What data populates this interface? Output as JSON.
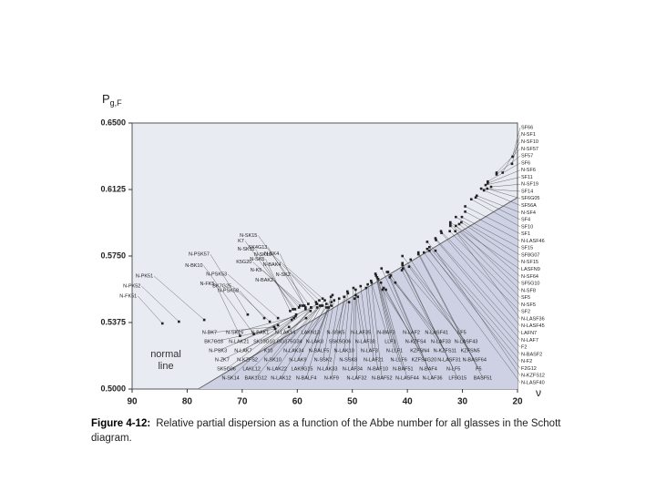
{
  "chart_data": {
    "type": "scatter",
    "y_label": {
      "main": "P",
      "sub": "g,F"
    },
    "x_label": "ν",
    "xlim": [
      90,
      20
    ],
    "xticks": [
      90,
      80,
      70,
      60,
      50,
      40,
      30,
      20
    ],
    "ylim": [
      0.5,
      0.65
    ],
    "yticks": [
      {
        "value": 0.5,
        "label": "0.5000"
      },
      {
        "value": 0.5375,
        "label": "0.5375"
      },
      {
        "value": 0.575,
        "label": "0.5750"
      },
      {
        "value": 0.6125,
        "label": "0.6125"
      },
      {
        "value": 0.65,
        "label": "0.6500"
      }
    ],
    "normal_line": {
      "x": [
        78,
        20
      ],
      "y": [
        0.5,
        0.608
      ],
      "label": "normal line"
    },
    "point_color": "#222222",
    "points": [
      {
        "label": "N-FK51",
        "x": 84.5,
        "y": 0.537
      },
      {
        "label": "N-PK52",
        "x": 81.5,
        "y": 0.538
      },
      {
        "label": "N-PK51",
        "x": 76.9,
        "y": 0.539
      },
      {
        "label": "N-FK5",
        "x": 70.4,
        "y": 0.53
      },
      {
        "label": "N-PSK3",
        "x": 63.5,
        "y": 0.536
      },
      {
        "label": "N-BK10",
        "x": 67.9,
        "y": 0.531
      },
      {
        "label": "N-BK7",
        "x": 64.2,
        "y": 0.535
      },
      {
        "label": "BK7G18",
        "x": 64,
        "y": 0.534
      },
      {
        "label": "BK7G25",
        "x": 65,
        "y": 0.538
      },
      {
        "label": "N-ZK7",
        "x": 61.5,
        "y": 0.535
      },
      {
        "label": "N-SK14",
        "x": 60.6,
        "y": 0.54
      },
      {
        "label": "N-SK16",
        "x": 60.3,
        "y": 0.541
      },
      {
        "label": "N-LAK21",
        "x": 60.2,
        "y": 0.542
      },
      {
        "label": "N-LAK7",
        "x": 58.5,
        "y": 0.545
      },
      {
        "label": "SK5G06",
        "x": 61,
        "y": 0.539
      },
      {
        "label": "N-PSK58",
        "x": 66,
        "y": 0.54
      },
      {
        "label": "N-PSK57",
        "x": 69,
        "y": 0.542
      },
      {
        "label": "N-PSK53",
        "x": 63.5,
        "y": 0.54
      },
      {
        "label": "N-SK5",
        "x": 61.3,
        "y": 0.544
      },
      {
        "label": "N-SK11",
        "x": 60.8,
        "y": 0.545
      },
      {
        "label": "K7",
        "x": 60.4,
        "y": 0.545
      },
      {
        "label": "N-BAK2",
        "x": 59.7,
        "y": 0.546
      },
      {
        "label": "N-K5",
        "x": 59.5,
        "y": 0.547
      },
      {
        "label": "N-SK4",
        "x": 58.7,
        "y": 0.547
      },
      {
        "label": "N-SK15",
        "x": 58,
        "y": 0.548
      },
      {
        "label": "SK4G13",
        "x": 58.5,
        "y": 0.546
      },
      {
        "label": "BAK1G12",
        "x": 57.5,
        "y": 0.546
      },
      {
        "label": "SK10G10",
        "x": 56.5,
        "y": 0.548
      },
      {
        "label": "N-SK2",
        "x": 56.6,
        "y": 0.549
      },
      {
        "label": "K5G20",
        "x": 59,
        "y": 0.547
      },
      {
        "label": "N-BAK4",
        "x": 56,
        "y": 0.55
      },
      {
        "label": "GG375G34",
        "x": 55,
        "y": 0.55
      },
      {
        "label": "N-SK18",
        "x": 55.4,
        "y": 0.551
      },
      {
        "label": "N-BALF5",
        "x": 53.6,
        "y": 0.553
      },
      {
        "label": "N-BALF4",
        "x": 53.9,
        "y": 0.552
      },
      {
        "label": "SSK5G06",
        "x": 50.8,
        "y": 0.554
      },
      {
        "label": "N-SSK5",
        "x": 50.9,
        "y": 0.555
      },
      {
        "label": "N-SSK8",
        "x": 49.8,
        "y": 0.557
      },
      {
        "label": "N-KF9",
        "x": 51.5,
        "y": 0.552
      },
      {
        "label": "N-LLF6",
        "x": 45.5,
        "y": 0.563
      },
      {
        "label": "N-LAF3",
        "x": 48.5,
        "y": 0.558
      },
      {
        "label": "N-BAF10",
        "x": 47.2,
        "y": 0.559
      },
      {
        "label": "N-BAF3",
        "x": 46.5,
        "y": 0.56
      },
      {
        "label": "N-BAF51",
        "x": 45.3,
        "y": 0.562
      },
      {
        "label": "N-BAF52",
        "x": 46.6,
        "y": 0.561
      },
      {
        "label": "N-LLF1",
        "x": 45.7,
        "y": 0.564
      },
      {
        "label": "N-LAF36",
        "x": 43.5,
        "y": 0.566
      },
      {
        "label": "N-BAF4",
        "x": 43.7,
        "y": 0.566
      },
      {
        "label": "N-LF5",
        "x": 40.9,
        "y": 0.57
      },
      {
        "label": "F5",
        "x": 38,
        "y": 0.577
      },
      {
        "label": "N-F2",
        "x": 36.4,
        "y": 0.579
      },
      {
        "label": "F2G12",
        "x": 36,
        "y": 0.578
      },
      {
        "label": "N-BASF2",
        "x": 36,
        "y": 0.58
      },
      {
        "label": "BASF51",
        "x": 38,
        "y": 0.576
      },
      {
        "label": "N-LASF40",
        "x": 37,
        "y": 0.577
      },
      {
        "label": "N-LAF7",
        "x": 34.8,
        "y": 0.584
      },
      {
        "label": "N-SF8",
        "x": 31.2,
        "y": 0.592
      },
      {
        "label": "N-SF5",
        "x": 32.3,
        "y": 0.589
      },
      {
        "label": "N-SF15",
        "x": 30.2,
        "y": 0.594
      },
      {
        "label": "N-SF64",
        "x": 30.6,
        "y": 0.593
      },
      {
        "label": "SF15",
        "x": 30.1,
        "y": 0.597
      },
      {
        "label": "N-SF1",
        "x": 21,
        "y": 0.627
      },
      {
        "label": "N-SF10",
        "x": 22.7,
        "y": 0.622
      },
      {
        "label": "N-SF19",
        "x": 24.8,
        "y": 0.614
      },
      {
        "label": "SF10",
        "x": 28.4,
        "y": 0.607
      },
      {
        "label": "N-SF6",
        "x": 25.4,
        "y": 0.616
      },
      {
        "label": "N-SF57",
        "x": 23.8,
        "y": 0.622
      },
      {
        "label": "SF66",
        "x": 20.9,
        "y": 0.631
      },
      {
        "label": "SF57",
        "x": 23.8,
        "y": 0.621
      },
      {
        "label": "SF14",
        "x": 26.6,
        "y": 0.613
      },
      {
        "label": "N-SF4",
        "x": 27.4,
        "y": 0.609
      },
      {
        "label": "SF11",
        "x": 25.8,
        "y": 0.615
      },
      {
        "label": "SF56A",
        "x": 26.1,
        "y": 0.612
      },
      {
        "label": "SF6G05",
        "x": 25.5,
        "y": 0.613
      },
      {
        "label": "SF6",
        "x": 25.4,
        "y": 0.617
      },
      {
        "label": "SF4",
        "x": 27.6,
        "y": 0.608
      },
      {
        "label": "SF1",
        "x": 29.5,
        "y": 0.603
      },
      {
        "label": "SF8G07",
        "x": 31.2,
        "y": 0.597
      },
      {
        "label": "N-LASF46",
        "x": 29.5,
        "y": 0.6
      },
      {
        "label": "LASFN9",
        "x": 32.2,
        "y": 0.594
      },
      {
        "label": "SF5G10",
        "x": 32.2,
        "y": 0.593
      },
      {
        "label": "SF2",
        "x": 33.9,
        "y": 0.589
      },
      {
        "label": "SF5",
        "x": 32.2,
        "y": 0.592
      },
      {
        "label": "N-LASF45",
        "x": 33.8,
        "y": 0.588
      },
      {
        "label": "N-LASF36",
        "x": 31.3,
        "y": 0.589
      },
      {
        "label": "LAFN7",
        "x": 34.9,
        "y": 0.585
      },
      {
        "label": "F2",
        "x": 36.4,
        "y": 0.583
      },
      {
        "label": "N-KZFS12",
        "x": 34.9,
        "y": 0.578
      },
      {
        "label": "N-BASF64",
        "x": 39.4,
        "y": 0.573
      },
      {
        "label": "LF5G15",
        "x": 40.9,
        "y": 0.571
      },
      {
        "label": "LF5",
        "x": 40.9,
        "y": 0.575
      },
      {
        "label": "KZFSN5",
        "x": 39.7,
        "y": 0.569
      },
      {
        "label": "N-LASF43",
        "x": 40.8,
        "y": 0.568
      },
      {
        "label": "N-LASF31",
        "x": 41,
        "y": 0.567
      },
      {
        "label": "N-LAF2",
        "x": 44.7,
        "y": 0.568
      },
      {
        "label": "LLF1",
        "x": 45.8,
        "y": 0.565
      },
      {
        "label": "N-LASF41",
        "x": 43.2,
        "y": 0.563
      },
      {
        "label": "N-LAF33",
        "x": 43,
        "y": 0.564
      },
      {
        "label": "N-KZFS11",
        "x": 42.2,
        "y": 0.56
      },
      {
        "label": "KZFSN4",
        "x": 44.3,
        "y": 0.557
      },
      {
        "label": "KZFS4G20",
        "x": 43.9,
        "y": 0.556
      },
      {
        "label": "N-KZFS4",
        "x": 44.5,
        "y": 0.556
      },
      {
        "label": "N-LAF32",
        "x": 49.4,
        "y": 0.556
      },
      {
        "label": "N-LAF21",
        "x": 47.5,
        "y": 0.557
      },
      {
        "label": "N-LAF35",
        "x": 49.4,
        "y": 0.553
      },
      {
        "label": "N-LAF38",
        "x": 49,
        "y": 0.552
      },
      {
        "label": "N-LAF34",
        "x": 49.6,
        "y": 0.551
      },
      {
        "label": "N-LAK10",
        "x": 50.6,
        "y": 0.549
      },
      {
        "label": "N-SSK2",
        "x": 53.3,
        "y": 0.55
      },
      {
        "label": "LAKN13",
        "x": 53.8,
        "y": 0.547
      },
      {
        "label": "LAK9G15",
        "x": 54.3,
        "y": 0.546
      },
      {
        "label": "K10",
        "x": 56.4,
        "y": 0.548
      },
      {
        "label": "N-LAK34",
        "x": 54.7,
        "y": 0.546
      },
      {
        "label": "N-KZFS2",
        "x": 58.4,
        "y": 0.54
      },
      {
        "label": "LAKL12",
        "x": 57.6,
        "y": 0.544
      },
      {
        "label": "N-LAK14",
        "x": 55.4,
        "y": 0.547
      },
      {
        "label": "N-SK10",
        "x": 56.4,
        "y": 0.546
      },
      {
        "label": "N-LAK22",
        "x": 55.9,
        "y": 0.547
      },
      {
        "label": "N-LAK9",
        "x": 54.7,
        "y": 0.548
      },
      {
        "label": "N-BAK1",
        "x": 57.5,
        "y": 0.546
      },
      {
        "label": "N-LAK8",
        "x": 53.8,
        "y": 0.549
      },
      {
        "label": "N-LAK12",
        "x": 55.6,
        "y": 0.547
      },
      {
        "label": "N-LAK33",
        "x": 52.4,
        "y": 0.551
      },
      {
        "label": "N-LASF44",
        "x": 44.8,
        "y": 0.56
      }
    ]
  },
  "caption": {
    "number": "Figure 4-12:",
    "text": "Relative partial dispersion as a function of the Abbe number for all glasses in the Schott diagram."
  }
}
